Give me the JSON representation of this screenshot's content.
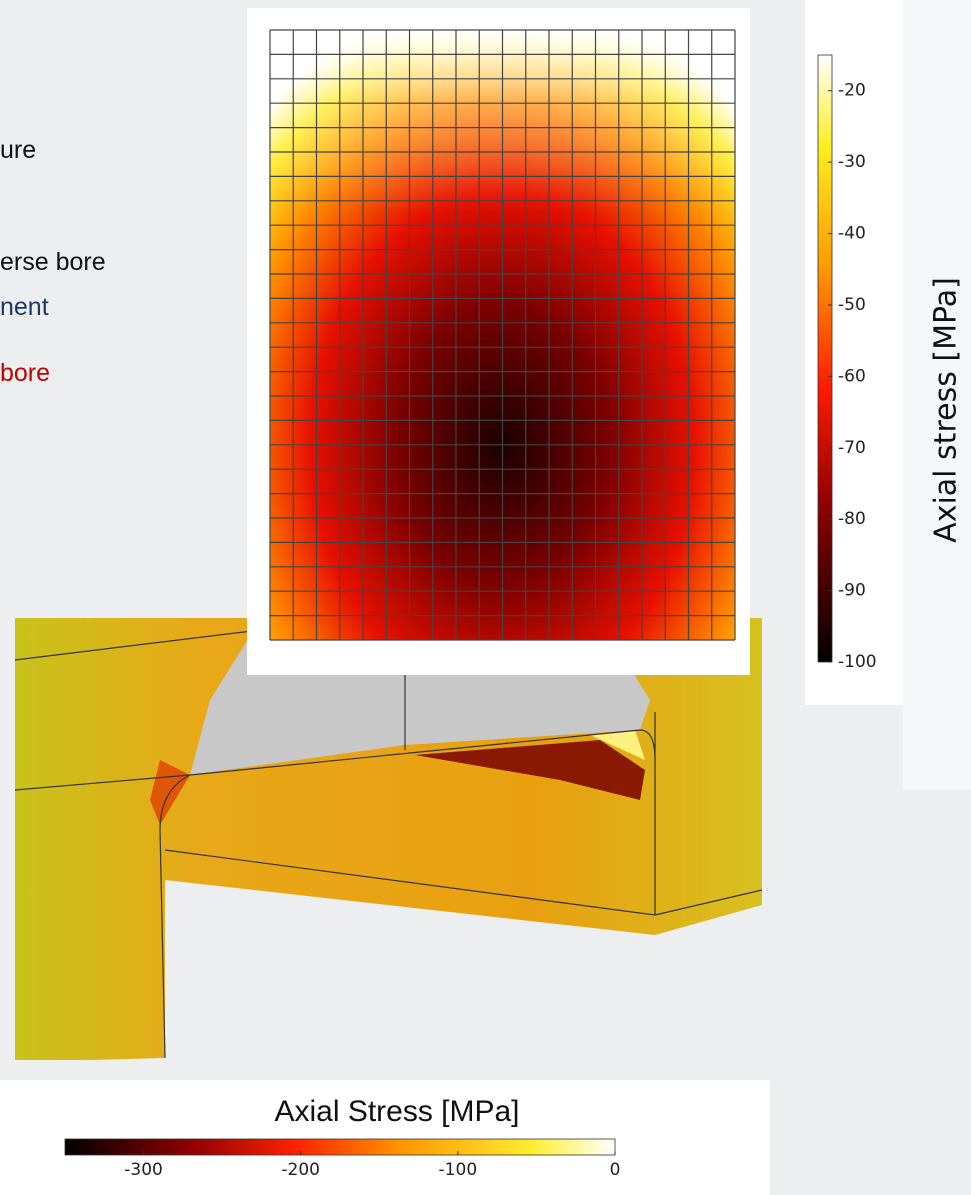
{
  "slide_text": {
    "line1": "ure",
    "line2": "erse bore",
    "line3": "nent",
    "line4": "bore"
  },
  "mesh_colorbar": {
    "label": "Axial stress [MPa]",
    "lim": [
      -100,
      -15
    ],
    "ticks": [
      -20,
      -30,
      -40,
      -50,
      -60,
      -70,
      -80,
      -90,
      -100
    ]
  },
  "model_colorbar": {
    "label": "Axial Stress [MPa]",
    "lim": [
      -350,
      0
    ],
    "ticks": [
      -300,
      -200,
      -100,
      0
    ]
  }
}
